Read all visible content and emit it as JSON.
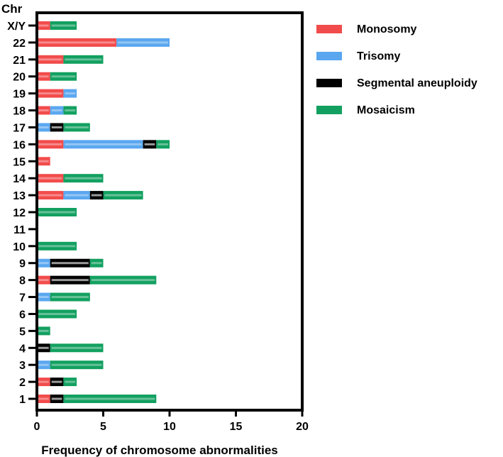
{
  "chart_data": {
    "type": "bar",
    "orientation": "horizontal",
    "stacked": true,
    "title": "",
    "ylabel": "Chr",
    "xlabel": "Frequency of chromosome abnormalities",
    "xlim": [
      0,
      20
    ],
    "xticks": [
      0,
      5,
      10,
      15,
      20
    ],
    "grid": false,
    "legend_position": "top-right",
    "categories": [
      "1",
      "2",
      "3",
      "4",
      "5",
      "6",
      "7",
      "8",
      "9",
      "10",
      "11",
      "12",
      "13",
      "14",
      "15",
      "16",
      "17",
      "18",
      "19",
      "20",
      "21",
      "22",
      "X/Y"
    ],
    "series": [
      {
        "name": "Monosomy",
        "color": "#f24b4b",
        "values": [
          1,
          1,
          0,
          0,
          0,
          0,
          0,
          1,
          0,
          0,
          0,
          0,
          2,
          2,
          1,
          2,
          0,
          1,
          2,
          1,
          2,
          6,
          1
        ]
      },
      {
        "name": "Trisomy",
        "color": "#5aa7f0",
        "values": [
          0,
          0,
          1,
          0,
          0,
          0,
          1,
          0,
          1,
          0,
          0,
          0,
          2,
          0,
          0,
          6,
          1,
          1,
          1,
          0,
          0,
          4,
          0
        ]
      },
      {
        "name": "Segmental aneuploidy",
        "color": "#000000",
        "values": [
          1,
          1,
          0,
          1,
          0,
          0,
          0,
          3,
          3,
          0,
          0,
          0,
          1,
          0,
          0,
          1,
          1,
          0,
          0,
          0,
          0,
          0,
          0
        ]
      },
      {
        "name": "Mosaicism",
        "color": "#12a060",
        "values": [
          7,
          1,
          4,
          4,
          1,
          3,
          3,
          5,
          1,
          3,
          0,
          3,
          3,
          3,
          0,
          1,
          2,
          1,
          0,
          2,
          3,
          0,
          2
        ]
      }
    ]
  }
}
